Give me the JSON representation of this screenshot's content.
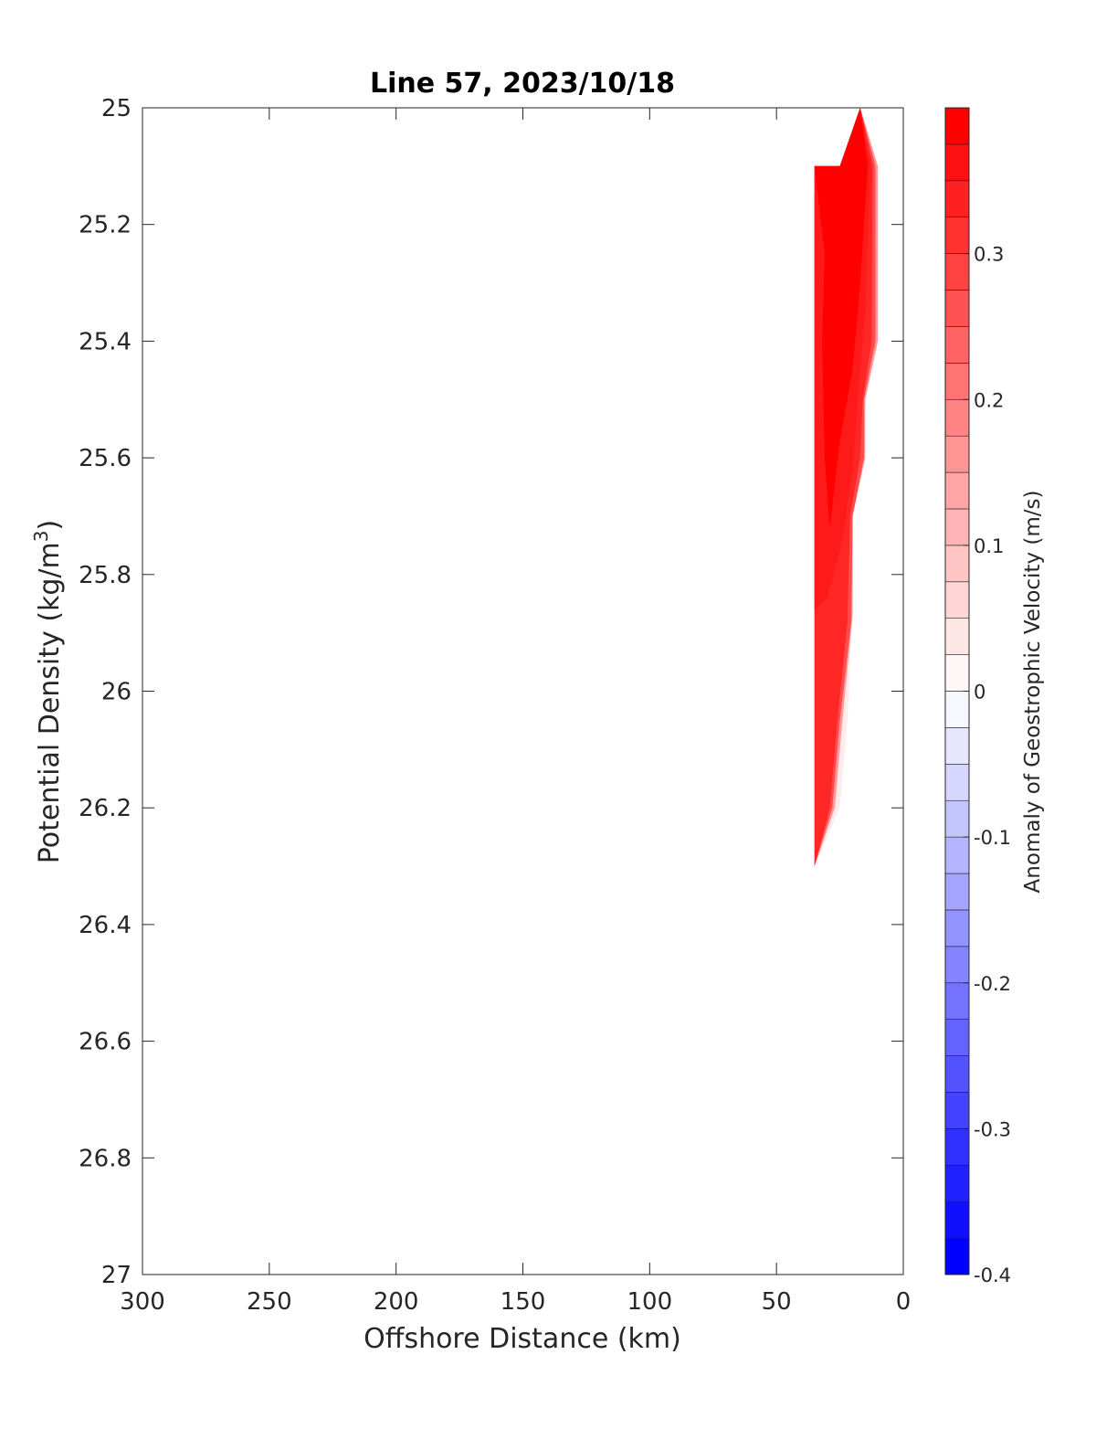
{
  "chart_data": {
    "type": "heatmap",
    "title": "Line 57, 2023/10/18",
    "xlabel": "Offshore Distance (km)",
    "ylabel_base": "Potential Density (kg/m",
    "ylabel_sup": "3",
    "ylabel_close": ")",
    "xlim": [
      300,
      0
    ],
    "ylim": [
      25,
      27
    ],
    "x_reversed": true,
    "y_reversed": true,
    "x_ticks": [
      300,
      250,
      200,
      150,
      100,
      50,
      0
    ],
    "x_tick_labels": [
      "300",
      "250",
      "200",
      "150",
      "100",
      "50",
      "0"
    ],
    "y_ticks": [
      25,
      25.2,
      25.4,
      25.6,
      25.8,
      26,
      26.2,
      26.4,
      26.6,
      26.8,
      27
    ],
    "y_tick_labels": [
      "25",
      "25.2",
      "25.4",
      "25.6",
      "25.8",
      "26",
      "26.2",
      "26.4",
      "26.6",
      "26.8",
      "27"
    ],
    "grid": false,
    "filled_contours": [
      {
        "level": "0.05",
        "color": "#ffebeb",
        "polygon": [
          [
            35,
            25.1
          ],
          [
            25,
            25.1
          ],
          [
            17,
            25
          ],
          [
            10,
            25.1
          ],
          [
            10,
            25.4
          ],
          [
            15,
            25.5
          ],
          [
            15,
            25.6
          ],
          [
            20,
            25.7
          ],
          [
            20,
            25.85
          ],
          [
            22,
            26.05
          ],
          [
            25,
            26.2
          ],
          [
            35,
            26.3
          ]
        ]
      },
      {
        "level": "0.15",
        "color": "#ff9999",
        "polygon": [
          [
            35,
            25.1
          ],
          [
            25,
            25.1
          ],
          [
            17,
            25
          ],
          [
            10,
            25.1
          ],
          [
            10,
            25.4
          ],
          [
            15,
            25.5
          ],
          [
            15,
            25.6
          ],
          [
            20,
            25.7
          ],
          [
            20,
            25.87
          ],
          [
            24,
            26.05
          ],
          [
            27,
            26.2
          ],
          [
            35,
            26.3
          ]
        ]
      },
      {
        "level": "0.25",
        "color": "#ff4d4d",
        "polygon": [
          [
            35,
            25.1
          ],
          [
            25,
            25.1
          ],
          [
            17,
            25
          ],
          [
            11,
            25.1
          ],
          [
            11,
            25.4
          ],
          [
            15.5,
            25.5
          ],
          [
            15.5,
            25.6
          ],
          [
            20,
            25.7
          ],
          [
            20.5,
            25.88
          ],
          [
            25,
            26.05
          ],
          [
            28,
            26.2
          ],
          [
            35,
            26.3
          ]
        ]
      },
      {
        "level": "0.30",
        "color": "#ff2626",
        "polygon": [
          [
            35,
            25.1
          ],
          [
            25,
            25.1
          ],
          [
            17,
            25
          ],
          [
            12,
            25.1
          ],
          [
            12.5,
            25.4
          ],
          [
            16,
            25.5
          ],
          [
            17,
            25.6
          ],
          [
            21,
            25.7
          ],
          [
            22,
            25.88
          ],
          [
            26,
            26.05
          ],
          [
            29,
            26.2
          ],
          [
            35,
            26.3
          ]
        ]
      },
      {
        "level": "0.35",
        "color": "#ff1a1a",
        "polygon": [
          [
            35,
            25.1
          ],
          [
            25,
            25.1
          ],
          [
            17,
            25
          ],
          [
            13,
            25.1
          ],
          [
            15,
            25.35
          ],
          [
            18,
            25.5
          ],
          [
            20,
            25.62
          ],
          [
            24,
            25.74
          ],
          [
            30,
            25.84
          ],
          [
            35,
            25.86
          ]
        ]
      },
      {
        "level": "0.38",
        "color": "#ff0000",
        "polygon": [
          [
            35,
            25.1
          ],
          [
            25,
            25.1
          ],
          [
            17,
            25
          ],
          [
            14,
            25.1
          ],
          [
            17,
            25.3
          ],
          [
            20,
            25.45
          ],
          [
            25,
            25.57
          ],
          [
            29,
            25.72
          ],
          [
            31,
            25.6
          ],
          [
            32,
            25.4
          ],
          [
            31,
            25.25
          ],
          [
            35,
            25.1
          ]
        ]
      },
      {
        "level": "0.40",
        "color": "#ff0000",
        "polygon": [
          [
            34,
            25.1
          ],
          [
            25,
            25.1
          ],
          [
            17,
            25
          ],
          [
            15,
            25.1
          ],
          [
            20,
            25.25
          ],
          [
            24,
            25.35
          ],
          [
            27,
            25.41
          ],
          [
            29,
            25.33
          ],
          [
            30,
            25.2
          ]
        ]
      }
    ],
    "colorbar": {
      "label": "Anomaly of Geostrophic Velocity (m/s)",
      "min": -0.4,
      "max": 0.4,
      "step": 0.025,
      "ticks": [
        -0.4,
        -0.3,
        -0.2,
        -0.1,
        0,
        0.1,
        0.2,
        0.3
      ],
      "tick_labels": [
        "-0.4",
        "-0.3",
        "-0.2",
        "-0.1",
        "0",
        "0.1",
        "0.2",
        "0.3"
      ],
      "neg_color": "#0000ff",
      "pos_color": "#ff0000",
      "mid_color": "#ffffff"
    }
  }
}
